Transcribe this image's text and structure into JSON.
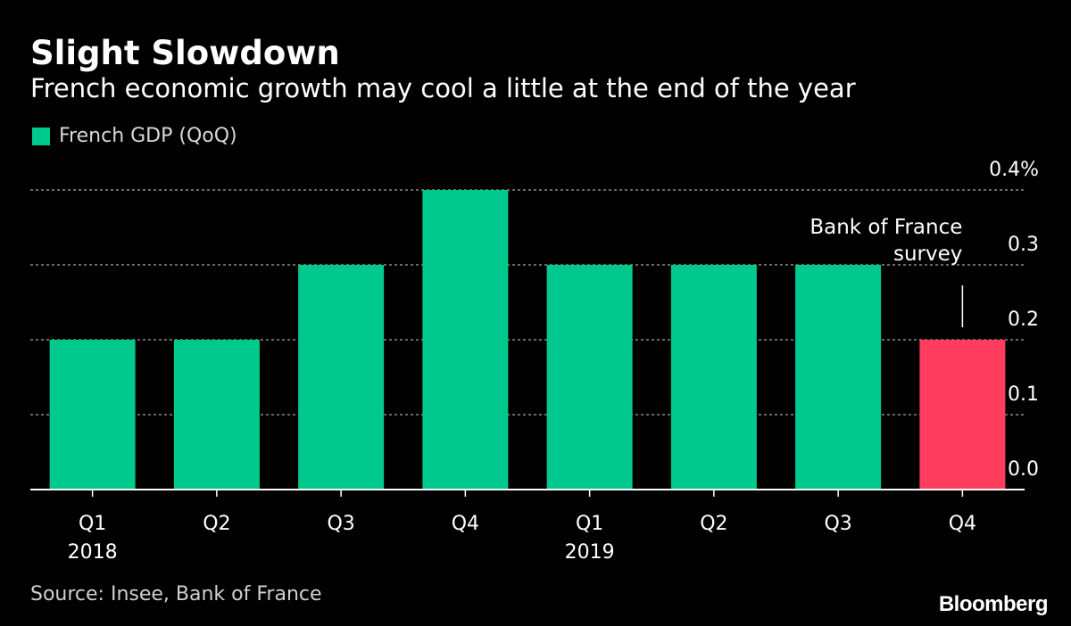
{
  "header": {
    "title": "Slight Slowdown",
    "subtitle": "French economic growth may cool a little at the end of the year"
  },
  "colors": {
    "actual": "#00c98e",
    "forecast": "#ff3d5e",
    "grid": "#8a8a8a",
    "axis": "#ffffff"
  },
  "chart_data": {
    "type": "bar",
    "categories": [
      "Q1",
      "Q2",
      "Q3",
      "Q4",
      "Q1",
      "Q2",
      "Q3",
      "Q4"
    ],
    "category_years": [
      "2018",
      "",
      "",
      "",
      "2019",
      "",
      "",
      ""
    ],
    "series": [
      {
        "name": "French GDP (QoQ)",
        "values": [
          0.2,
          0.2,
          0.3,
          0.4,
          0.3,
          0.3,
          0.3,
          0.2
        ],
        "highlight_index": 7
      }
    ],
    "ylim": [
      0,
      0.4
    ],
    "yticks": [
      0.0,
      0.1,
      0.2,
      0.3,
      0.4
    ],
    "ytick_labels": [
      "0.0",
      "0.1",
      "0.2",
      "0.3",
      "0.4%"
    ],
    "y_axis_position": "right",
    "grid": true,
    "legend_position": "top-left",
    "annotation": {
      "lines": [
        "Bank of France",
        "survey"
      ],
      "target_index": 7
    }
  },
  "footer": {
    "source": "Source: Insee, Bank of France",
    "brand": "Bloomberg"
  }
}
